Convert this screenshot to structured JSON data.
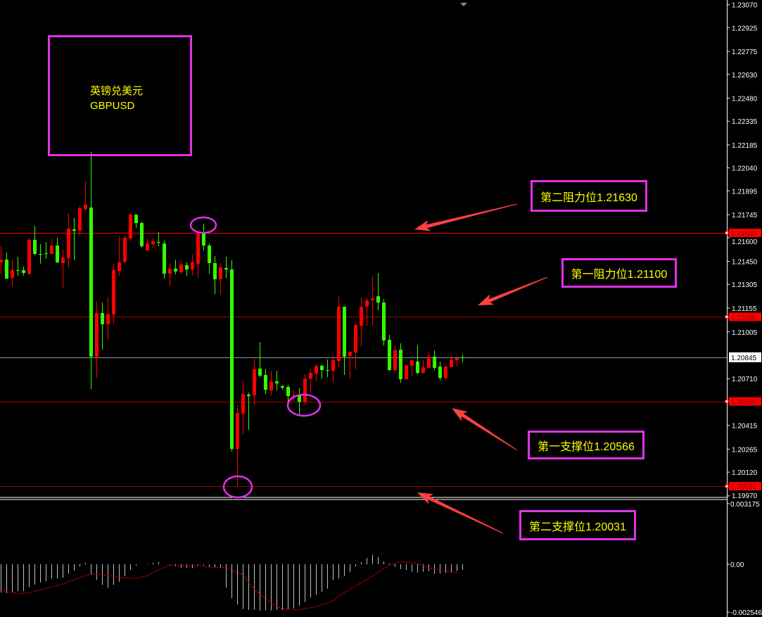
{
  "title_box": {
    "line1": "英镑兑美元",
    "line2": "GBPUSD"
  },
  "annotations": [
    {
      "label": "第二阻力位1.21630",
      "price": 1.2163
    },
    {
      "label": "第一阻力位1.21100",
      "price": 1.211
    },
    {
      "label": "第一支撑位1.20566",
      "price": 1.20566
    },
    {
      "label": "第二支撑位1.20031",
      "price": 1.20031
    }
  ],
  "colors": {
    "background": "#000000",
    "up_candle": "#ff0000",
    "down_candle": "#33ff00",
    "annotation_border": "#e331e8",
    "annotation_text": "#ffff00",
    "arrow": "#ff4040",
    "macd_histogram": "#c0c0c0",
    "macd_signal": "#ff0000"
  },
  "chart_data": [
    {
      "type": "candlestick",
      "symbol": "GBPUSD",
      "ylim": [
        1.1997,
        1.2307
      ],
      "y_ticks": [
        "1.23070",
        "1.22925",
        "1.22775",
        "1.22630",
        "1.22480",
        "1.22335",
        "1.22185",
        "1.22040",
        "1.21895",
        "1.21745",
        "1.21600",
        "1.21450",
        "1.21305",
        "1.21155",
        "1.21005",
        "1.20710",
        "1.20415",
        "1.20265",
        "1.20120",
        "1.19970"
      ],
      "current_price": "1.20845",
      "level_labels": [
        "1.21630",
        "1.21100",
        "1.20566",
        "1.20031"
      ],
      "ohlc": [
        [
          1.21444,
          1.21546,
          1.21368,
          1.21461
        ],
        [
          1.21461,
          1.21506,
          1.21341,
          1.21341
        ],
        [
          1.21346,
          1.21457,
          1.21288,
          1.21395
        ],
        [
          1.21395,
          1.21479,
          1.21359,
          1.21395
        ],
        [
          1.21395,
          1.21417,
          1.21359,
          1.21377
        ],
        [
          1.21372,
          1.21599,
          1.21363,
          1.21586
        ],
        [
          1.21586,
          1.21674,
          1.21488,
          1.21497
        ],
        [
          1.21497,
          1.21559,
          1.21435,
          1.21497
        ],
        [
          1.21501,
          1.21572,
          1.21466,
          1.21501
        ],
        [
          1.21497,
          1.21594,
          1.21497,
          1.2155
        ],
        [
          1.2155,
          1.21599,
          1.21439,
          1.21444
        ],
        [
          1.21439,
          1.21528,
          1.21279,
          1.21475
        ],
        [
          1.2147,
          1.21754,
          1.21412,
          1.21657
        ],
        [
          1.21652,
          1.21723,
          1.21457,
          1.21643
        ],
        [
          1.21643,
          1.21803,
          1.21612,
          1.21785
        ],
        [
          1.21781,
          1.21954,
          1.21768,
          1.21808
        ],
        [
          1.2179,
          1.22141,
          1.20644,
          1.20849
        ],
        [
          1.20849,
          1.21195,
          1.20715,
          1.21124
        ],
        [
          1.21124,
          1.2119,
          1.20893,
          1.21053
        ],
        [
          1.21053,
          1.21222,
          1.20951,
          1.21119
        ],
        [
          1.21115,
          1.21435,
          1.21057,
          1.21395
        ],
        [
          1.2139,
          1.21608,
          1.21359,
          1.21444
        ],
        [
          1.21448,
          1.21612,
          1.21435,
          1.21599
        ],
        [
          1.21594,
          1.21754,
          1.21577,
          1.21745
        ],
        [
          1.21745,
          1.21745,
          1.21661,
          1.21692
        ],
        [
          1.21692,
          1.21701,
          1.21537,
          1.21546
        ],
        [
          1.21519,
          1.21599,
          1.21519,
          1.21563
        ],
        [
          1.21559,
          1.21599,
          1.21537,
          1.21577
        ],
        [
          1.21572,
          1.21634,
          1.21546,
          1.21572
        ],
        [
          1.21563,
          1.21581,
          1.21341,
          1.21372
        ],
        [
          1.21372,
          1.21435,
          1.21293,
          1.21404
        ],
        [
          1.21404,
          1.21461,
          1.21368,
          1.21386
        ],
        [
          1.21381,
          1.21461,
          1.21368,
          1.2143
        ],
        [
          1.21426,
          1.21444,
          1.21359,
          1.21399
        ],
        [
          1.21399,
          1.21492,
          1.21363,
          1.21444
        ],
        [
          1.21435,
          1.21634,
          1.21346,
          1.21626
        ],
        [
          1.21626,
          1.21688,
          1.21519,
          1.2155
        ],
        [
          1.2155,
          1.21563,
          1.21372,
          1.21439
        ],
        [
          1.21439,
          1.21483,
          1.21244,
          1.21337
        ],
        [
          1.21337,
          1.21439,
          1.21239,
          1.21412
        ],
        [
          1.21408,
          1.21479,
          1.21346,
          1.21399
        ],
        [
          1.21399,
          1.21457,
          1.20249,
          1.20267
        ],
        [
          1.20267,
          1.20542,
          1.20031,
          1.20493
        ],
        [
          1.20489,
          1.20698,
          1.2036,
          1.20613
        ],
        [
          1.20609,
          1.20622,
          1.20387,
          1.206
        ],
        [
          1.20604,
          1.20835,
          1.20542,
          1.20769
        ],
        [
          1.20773,
          1.20942,
          1.2072,
          1.20729
        ],
        [
          1.20733,
          1.20773,
          1.20613,
          1.2064
        ],
        [
          1.20636,
          1.2076,
          1.20604,
          1.20693
        ],
        [
          1.20693,
          1.2076,
          1.20636,
          1.2068
        ],
        [
          1.20662,
          1.20671,
          1.2064,
          1.20653
        ],
        [
          1.20658,
          1.20671,
          1.20564,
          1.206
        ],
        [
          1.206,
          1.2064,
          1.20569,
          1.20604
        ],
        [
          1.20609,
          1.20649,
          1.2048,
          1.20564
        ],
        [
          1.20564,
          1.20738,
          1.20547,
          1.20711
        ],
        [
          1.20711,
          1.20773,
          1.20622,
          1.20746
        ],
        [
          1.20742,
          1.208,
          1.20693,
          1.20791
        ],
        [
          1.20791,
          1.208,
          1.20711,
          1.20764
        ],
        [
          1.20764,
          1.20831,
          1.2072,
          1.20764
        ],
        [
          1.2076,
          1.20853,
          1.20684,
          1.20826
        ],
        [
          1.20822,
          1.21226,
          1.20782,
          1.21164
        ],
        [
          1.21164,
          1.21164,
          1.20733,
          1.20849
        ],
        [
          1.20853,
          1.2088,
          1.20711,
          1.2088
        ],
        [
          1.20875,
          1.21057,
          1.20769,
          1.21048
        ],
        [
          1.21044,
          1.21222,
          1.20915,
          1.21164
        ],
        [
          1.21164,
          1.21222,
          1.21044,
          1.21204
        ],
        [
          1.21204,
          1.21355,
          1.21048,
          1.21217
        ],
        [
          1.2123,
          1.21377,
          1.21142,
          1.2119
        ],
        [
          1.2119,
          1.21213,
          1.2092,
          1.20951
        ],
        [
          1.20955,
          1.20986,
          1.2076,
          1.20764
        ],
        [
          1.20764,
          1.2092,
          1.20746,
          1.20889
        ],
        [
          1.20893,
          1.20933,
          1.20684,
          1.20706
        ],
        [
          1.20706,
          1.20795,
          1.20706,
          1.20795
        ],
        [
          1.20791,
          1.20826,
          1.20729,
          1.20826
        ],
        [
          1.20818,
          1.2092,
          1.20738,
          1.20746
        ],
        [
          1.20746,
          1.20831,
          1.20742,
          1.20782
        ],
        [
          1.20778,
          1.2088,
          1.20773,
          1.20849
        ],
        [
          1.20849,
          1.20889,
          1.20764,
          1.20778
        ],
        [
          1.20786,
          1.20818,
          1.20698,
          1.20715
        ],
        [
          1.20715,
          1.20795,
          1.20706,
          1.20786
        ],
        [
          1.20782,
          1.20853,
          1.20782,
          1.20831
        ],
        [
          1.20826,
          1.20853,
          1.20786,
          1.2084
        ],
        [
          1.20845,
          1.20862,
          1.20813,
          1.20845
        ]
      ]
    },
    {
      "type": "bar",
      "indicator": "MACD",
      "ylim": [
        -0.002546,
        0.003175
      ],
      "y_ticks": [
        "0.003175",
        "0.00",
        "-0.002546"
      ],
      "histogram": [
        -0.00149,
        -0.00152,
        -0.00149,
        -0.00142,
        -0.00142,
        -0.0012,
        -0.00107,
        -0.00096,
        -0.00089,
        -0.00075,
        -0.00075,
        -0.00071,
        -0.00049,
        -0.00034,
        -0.00011,
        8e-05,
        -0.00055,
        -0.00082,
        -0.00109,
        -0.00124,
        -0.00109,
        -0.00092,
        -0.00062,
        -0.0003,
        -6e-05,
        0.0,
        2e-05,
        8e-05,
        0.00011,
        0.0,
        -3e-05,
        -0.00011,
        -0.00018,
        -0.00021,
        -0.00021,
        -6e-05,
        -5e-05,
        -0.00015,
        -0.00018,
        -0.00021,
        -0.00123,
        -0.00179,
        -0.00213,
        -0.00236,
        -0.0024,
        -0.0024,
        -0.00246,
        -0.00243,
        -0.00243,
        -0.0024,
        -0.0024,
        -0.00236,
        -0.00233,
        -0.00218,
        -0.00199,
        -0.00176,
        -0.00161,
        -0.00146,
        -0.00128,
        -0.00083,
        -0.00075,
        -0.00062,
        -0.00042,
        -0.00011,
        0.00011,
        0.00033,
        0.00049,
        0.00038,
        0.00014,
        5e-05,
        -0.00014,
        -0.00025,
        -0.0003,
        -0.0004,
        -0.00044,
        -0.0004,
        -0.00036,
        -0.00051,
        -0.00049,
        -0.00046,
        -0.00044,
        -0.00036,
        -0.0003
      ],
      "signal": [
        [
          0,
          -0.00136
        ],
        [
          3,
          -0.00155
        ],
        [
          5,
          -0.00151
        ],
        [
          8,
          -0.00128
        ],
        [
          11,
          -0.00105
        ],
        [
          14,
          -0.00071
        ],
        [
          16,
          -0.0005
        ],
        [
          18,
          -0.00054
        ],
        [
          21,
          -0.0007
        ],
        [
          24,
          -0.00075
        ],
        [
          26,
          -0.00061
        ],
        [
          28,
          -0.0003
        ],
        [
          30,
          -6e-05
        ],
        [
          35,
          -9e-05
        ],
        [
          37,
          -0.00015
        ],
        [
          40,
          -0.00018
        ],
        [
          43,
          -0.00055
        ],
        [
          45,
          -0.0013
        ],
        [
          48,
          -0.00205
        ],
        [
          50,
          -0.00236
        ],
        [
          53,
          -0.0024
        ],
        [
          56,
          -0.00224
        ],
        [
          59,
          -0.00193
        ],
        [
          61,
          -0.00149
        ],
        [
          64,
          -0.00099
        ],
        [
          67,
          -0.00043
        ],
        [
          69,
          -5e-05
        ],
        [
          71,
          0.00013
        ],
        [
          74,
          5e-05
        ],
        [
          76,
          -0.00018
        ],
        [
          79,
          -0.00036
        ],
        [
          81,
          -0.00045
        ]
      ]
    }
  ]
}
